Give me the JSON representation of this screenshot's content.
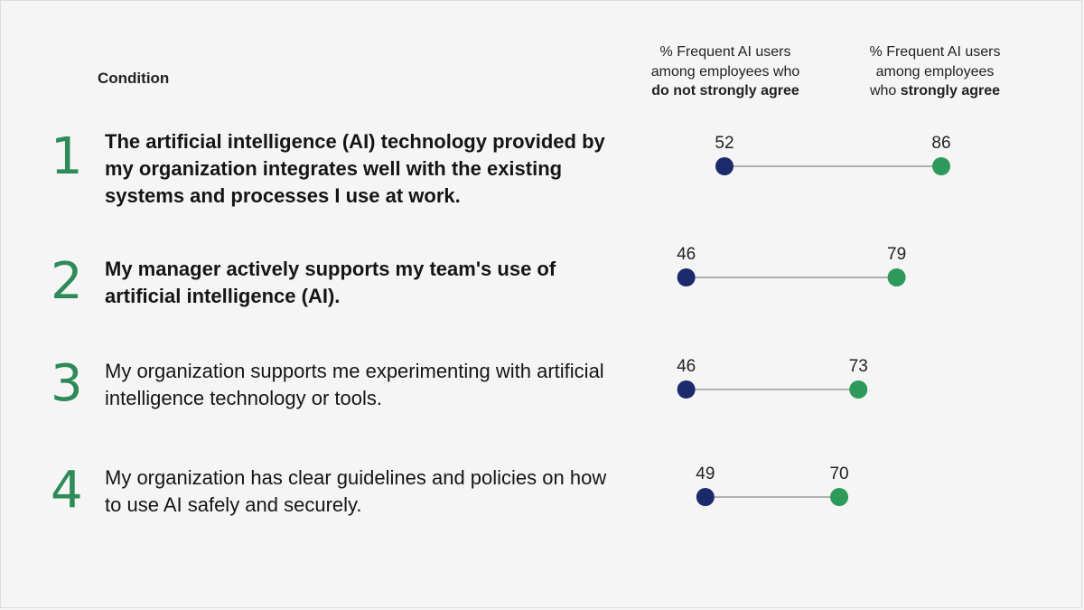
{
  "condition_header": "Condition",
  "columns": {
    "left": {
      "line1": "% Frequent AI users",
      "line2": "among employees who",
      "line3_bold": "do not strongly agree"
    },
    "right": {
      "line1": "% Frequent AI users",
      "line2": "among employees",
      "line3_prefix": "who ",
      "line3_bold": "strongly agree"
    }
  },
  "rows": [
    {
      "number": "1",
      "text": "The artificial intelligence (AI) technology provided by my organization integrates well with the existing systems and processes I use at work.",
      "bold": true
    },
    {
      "number": "2",
      "text": "My manager actively supports my team's use of artificial intelligence (AI).",
      "bold": true
    },
    {
      "number": "3",
      "text": "My organization supports me experimenting with artificial intelligence technology or tools.",
      "bold": false
    },
    {
      "number": "4",
      "text": "My organization has clear guidelines and policies on how to use AI safely and securely.",
      "bold": false
    }
  ],
  "colors": {
    "not_strongly_agree": "#1b2a6b",
    "strongly_agree": "#2e9a5a",
    "connector": "#9a9a9a",
    "number": "#2e8b57"
  },
  "chart_data": {
    "type": "dumbbell",
    "categories": [
      "1",
      "2",
      "3",
      "4"
    ],
    "series": [
      {
        "name": "% Frequent AI users among employees who do not strongly agree",
        "values": [
          52,
          46,
          46,
          49
        ]
      },
      {
        "name": "% Frequent AI users among employees who strongly agree",
        "values": [
          86,
          79,
          73,
          70
        ]
      }
    ],
    "xlim": [
      20,
      100
    ]
  }
}
